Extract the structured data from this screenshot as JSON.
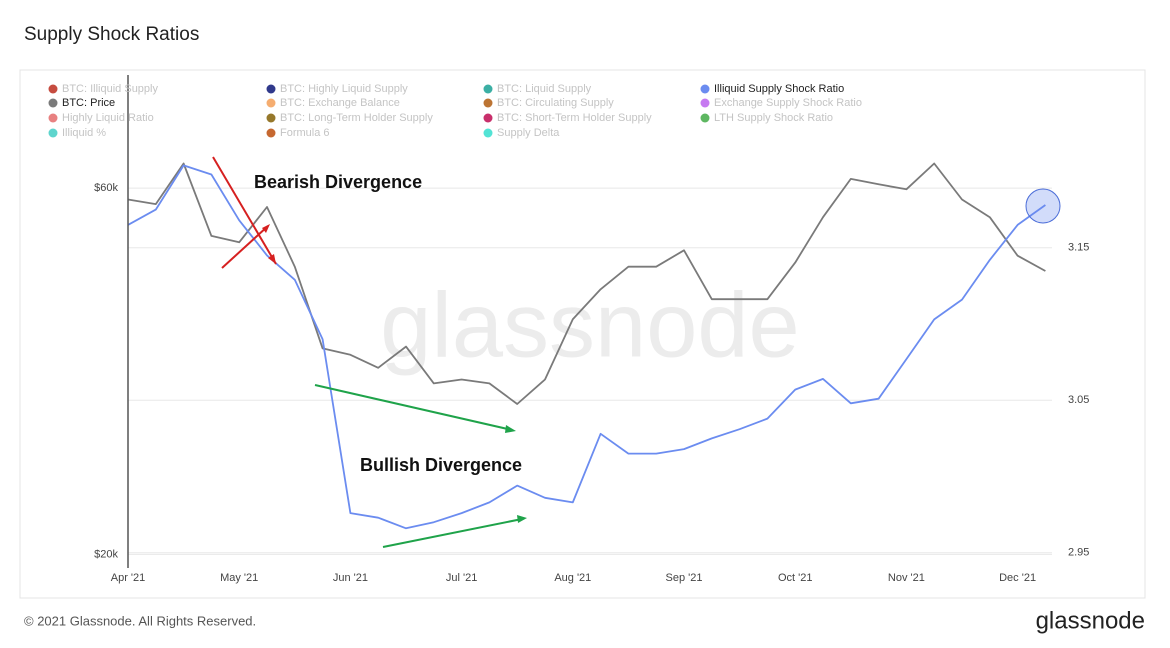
{
  "chart_data": {
    "type": "line",
    "title": "Supply Shock Ratios",
    "categories": [
      "Apr '21",
      null,
      null,
      null,
      "May '21",
      null,
      null,
      null,
      "Jun '21",
      null,
      null,
      null,
      "Jul '21",
      null,
      null,
      null,
      "Aug '21",
      null,
      null,
      null,
      "Sep '21",
      null,
      null,
      null,
      "Oct '21",
      null,
      null,
      null,
      "Nov '21",
      null,
      null,
      null,
      "Dec '21",
      null
    ],
    "series": [
      {
        "name": "BTC: Price",
        "color": "#7a7a7a",
        "axis": "y",
        "values": [
          58000,
          57200,
          64600,
          52000,
          51000,
          56700,
          47400,
          37100,
          36400,
          35000,
          37300,
          33400,
          33800,
          33400,
          31400,
          33800,
          40500,
          44300,
          47400,
          47400,
          49800,
          43000,
          43000,
          43000,
          48000,
          55000,
          61700,
          60700,
          59800,
          64600,
          58000,
          55000,
          49000,
          46800
        ]
      },
      {
        "name": "Illiquid Supply Shock Ratio",
        "color": "#6b8cf0",
        "axis": "y2",
        "values": [
          3.165,
          3.175,
          3.204,
          3.198,
          3.168,
          3.145,
          3.129,
          3.09,
          2.976,
          2.973,
          2.966,
          2.97,
          2.976,
          2.983,
          2.994,
          2.986,
          2.983,
          3.028,
          3.015,
          3.015,
          3.018,
          3.025,
          3.031,
          3.038,
          3.057,
          3.064,
          3.048,
          3.051,
          3.077,
          3.103,
          3.116,
          3.142,
          3.165,
          3.178
        ]
      }
    ],
    "inactive_legend": [
      {
        "name": "BTC: Illiquid Supply",
        "color": "#c0392b"
      },
      {
        "name": "BTC: Highly Liquid Supply",
        "color": "#1a237e"
      },
      {
        "name": "BTC: Liquid Supply",
        "color": "#26a69a"
      },
      {
        "name": "BTC: Exchange Balance",
        "color": "#f4a460"
      },
      {
        "name": "BTC: Circulating Supply",
        "color": "#b5651d"
      },
      {
        "name": "Exchange Supply Shock Ratio",
        "color": "#c06cf0"
      },
      {
        "name": "Highly Liquid Ratio",
        "color": "#e57373"
      },
      {
        "name": "BTC: Long-Term Holder Supply",
        "color": "#8b6914"
      },
      {
        "name": "BTC: Short-Term Holder Supply",
        "color": "#c2185b"
      },
      {
        "name": "LTH Supply Shock Ratio",
        "color": "#4caf50"
      },
      {
        "name": "Illiquid %",
        "color": "#4dd0c8"
      },
      {
        "name": "Formula 6",
        "color": "#c0581a"
      },
      {
        "name": "Supply Delta",
        "color": "#40e0d0"
      }
    ],
    "ylim": [
      19200,
      83000
    ],
    "ylog": true,
    "yticks": [
      {
        "value": 20000,
        "label": "$20k"
      },
      {
        "value": 60000,
        "label": "$60k"
      }
    ],
    "y2lim": [
      2.94,
      3.26
    ],
    "y2ticks": [
      2.95,
      3.05,
      3.15
    ],
    "grid": true,
    "annotations": [
      "Bearish Divergence",
      "Bullish Divergence"
    ]
  },
  "watermark": "glassnode",
  "footer": "© 2021 Glassnode. All Rights Reserved.",
  "logo": "glassnode"
}
